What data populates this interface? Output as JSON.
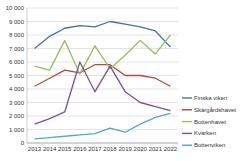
{
  "chart_data": {
    "type": "line",
    "categories": [
      "2013",
      "2014",
      "2015",
      "2016",
      "2017",
      "2018",
      "2019",
      "2020",
      "2021",
      "2022"
    ],
    "series": [
      {
        "name": "Finska viken",
        "color": "#3e6fb6",
        "values": [
          7000,
          7900,
          8500,
          8700,
          8600,
          9000,
          8800,
          8600,
          8300,
          7100
        ]
      },
      {
        "name": "Skärgårdshavet",
        "color": "#b5473a",
        "values": [
          4200,
          4800,
          5400,
          5200,
          5800,
          5800,
          5000,
          5000,
          4800,
          4200
        ]
      },
      {
        "name": "Bottenhavet",
        "color": "#9bbb59",
        "values": [
          5700,
          5400,
          7600,
          5100,
          7200,
          5500,
          6500,
          7600,
          6600,
          8000
        ]
      },
      {
        "name": "Kvarken",
        "color": "#7a4f9e",
        "values": [
          1400,
          1800,
          2300,
          6000,
          3800,
          5700,
          3800,
          3000,
          2700,
          2400
        ]
      },
      {
        "name": "Bottenviken",
        "color": "#4bacc6",
        "values": [
          300,
          400,
          500,
          600,
          700,
          1100,
          800,
          1400,
          1900,
          2200
        ]
      }
    ],
    "ylim": [
      0,
      10000
    ],
    "yticks": [
      0,
      {
        "value": 1000,
        "label": "1 000"
      },
      {
        "value": 2000,
        "label": "2 000"
      },
      {
        "value": 3000,
        "label": "3 000"
      },
      {
        "value": 4000,
        "label": "4 000"
      },
      {
        "value": 5000,
        "label": "5 000"
      },
      {
        "value": 6000,
        "label": "6 000"
      },
      {
        "value": 7000,
        "label": "7 000"
      },
      {
        "value": 8000,
        "label": "8 000"
      },
      {
        "value": 9000,
        "label": "9 000"
      },
      {
        "value": 10000,
        "label": "10 000"
      }
    ],
    "grid": true,
    "legend": "right"
  }
}
